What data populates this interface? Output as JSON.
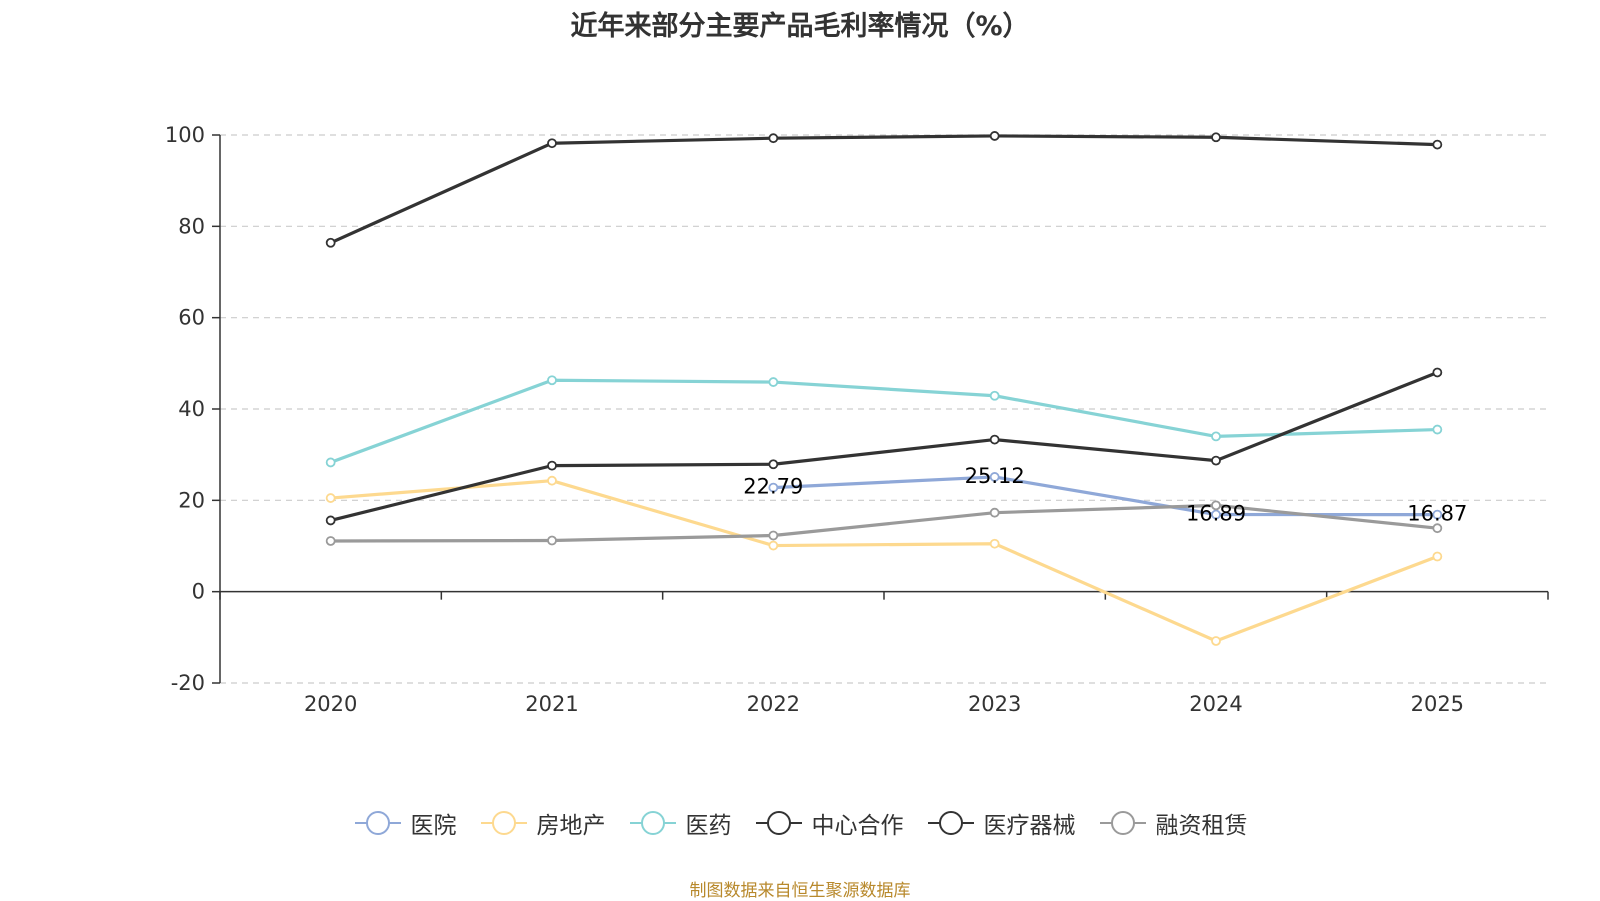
{
  "chart_data": {
    "type": "line",
    "title": "近年来部分主要产品毛利率情况（%）",
    "categories": [
      "2020",
      "2021",
      "2022",
      "2023",
      "2024",
      "2025"
    ],
    "ylim": [
      -20,
      100
    ],
    "yticks": [
      -20,
      0,
      20,
      40,
      60,
      80,
      100
    ],
    "xlabel": "",
    "ylabel": "",
    "grid": "dashed horizontal",
    "legend_position": "bottom",
    "series": [
      {
        "name": "医院",
        "color": "#8fa8d8",
        "values": [
          null,
          null,
          22.79,
          25.12,
          16.89,
          16.87
        ],
        "labels": [
          null,
          null,
          "22.79",
          "25.12",
          "16.89",
          "16.87"
        ]
      },
      {
        "name": "房地产",
        "color": "#fdd98f",
        "values": [
          20.5,
          24.3,
          10.1,
          10.5,
          -10.8,
          7.7
        ]
      },
      {
        "name": "医药",
        "color": "#86d3d5",
        "values": [
          28.3,
          46.3,
          45.9,
          42.9,
          34.0,
          35.5
        ]
      },
      {
        "name": "中心合作",
        "color": "#333333",
        "values": [
          76.4,
          98.2,
          99.3,
          99.8,
          99.5,
          97.9
        ]
      },
      {
        "name": "医疗器械",
        "color": "#333333",
        "values": [
          15.6,
          27.6,
          27.9,
          33.3,
          28.7,
          48.0
        ]
      },
      {
        "name": "融资租赁",
        "color": "#9a9a9a",
        "values": [
          11.1,
          11.2,
          12.3,
          17.3,
          18.9,
          13.9
        ]
      }
    ]
  },
  "source_text": "制图数据来自恒生聚源数据库"
}
